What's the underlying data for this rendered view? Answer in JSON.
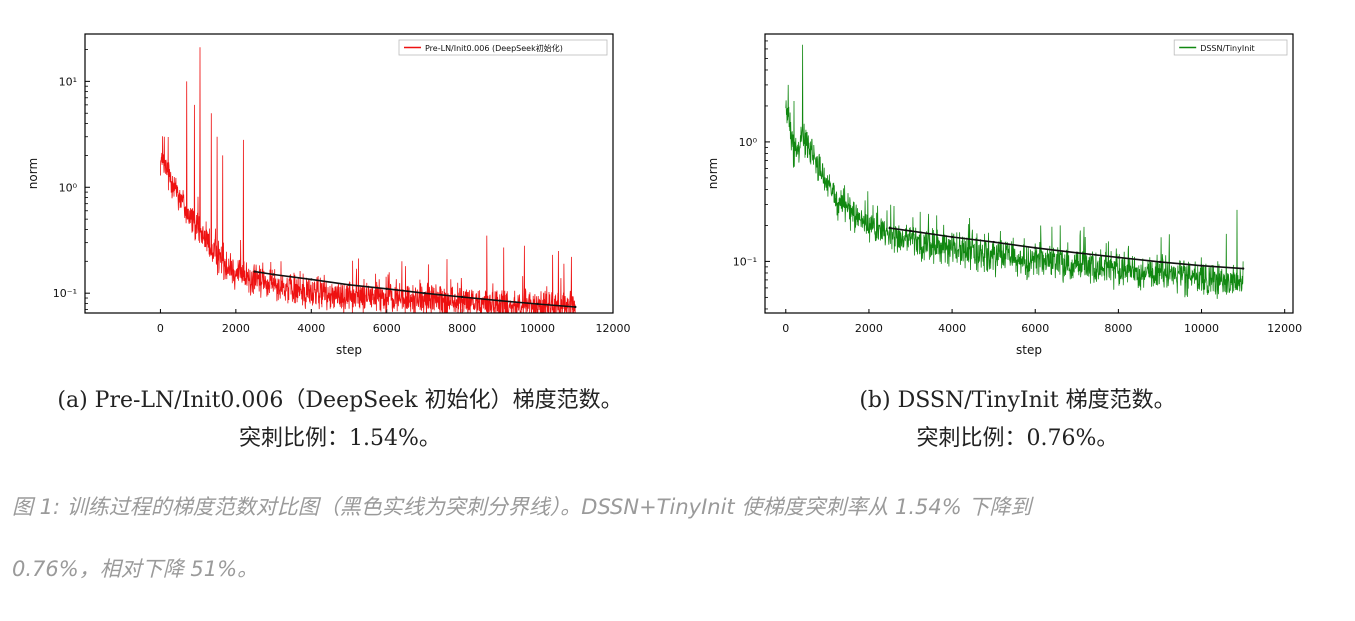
{
  "chart_data": [
    {
      "type": "line",
      "legend_position": "top-right",
      "xlabel": "step",
      "ylabel": "norm",
      "y_scale": "log",
      "xlim": [
        -2000,
        12000
      ],
      "ylim": [
        0.065,
        28
      ],
      "x_ticks": [
        0,
        2000,
        4000,
        6000,
        8000,
        10000,
        12000
      ],
      "x_tick_labels": [
        "0",
        "2000",
        "4000",
        "6000",
        "8000",
        "10000",
        "12000"
      ],
      "y_ticks": [
        10,
        1,
        0.1
      ],
      "y_tick_labels": [
        "10¹",
        "10⁰",
        "10⁻¹"
      ],
      "series": [
        {
          "name": "Pre-LN/Init0.006 (DeepSeek初始化)",
          "color": "#ee1111",
          "kind": "noisy",
          "x_range": [
            0,
            11000
          ],
          "trend": [
            [
              0,
              1.8
            ],
            [
              300,
              1.2
            ],
            [
              800,
              0.5
            ],
            [
              1500,
              0.22
            ],
            [
              2200,
              0.14
            ],
            [
              4000,
              0.1
            ],
            [
              7000,
              0.085
            ],
            [
              11000,
              0.073
            ]
          ],
          "noise": 0.18,
          "spikes": [
            [
              100,
              3.0
            ],
            [
              700,
              10.0
            ],
            [
              900,
              6.0
            ],
            [
              1050,
              21.0
            ],
            [
              1350,
              5.0
            ],
            [
              1500,
              3.0
            ],
            [
              1650,
              2.0
            ],
            [
              2200,
              2.8
            ],
            [
              3200,
              0.2
            ],
            [
              5200,
              0.17
            ],
            [
              6400,
              0.2
            ],
            [
              6500,
              0.18
            ],
            [
              7600,
              0.21
            ],
            [
              8650,
              0.35
            ],
            [
              9100,
              0.27
            ],
            [
              9650,
              0.28
            ],
            [
              10400,
              0.23
            ],
            [
              10550,
              0.25
            ],
            [
              10700,
              0.19
            ],
            [
              10900,
              0.22
            ]
          ]
        },
        {
          "name": "spike-boundary",
          "color": "#111111",
          "kind": "line",
          "x": [
            2500,
            3000,
            4000,
            5000,
            6000,
            7000,
            8000,
            9000,
            10000,
            11000
          ],
          "values": [
            0.16,
            0.15,
            0.135,
            0.12,
            0.11,
            0.1,
            0.092,
            0.085,
            0.079,
            0.074
          ]
        }
      ]
    },
    {
      "type": "line",
      "legend_position": "top-right",
      "xlabel": "step",
      "ylabel": "norm",
      "y_scale": "log",
      "xlim": [
        -500,
        12200
      ],
      "ylim": [
        0.037,
        8
      ],
      "x_ticks": [
        0,
        2000,
        4000,
        6000,
        8000,
        10000,
        12000
      ],
      "x_tick_labels": [
        "0",
        "2000",
        "4000",
        "6000",
        "8000",
        "10000",
        "12000"
      ],
      "y_ticks": [
        1,
        0.1
      ],
      "y_tick_labels": [
        "10⁰",
        "10⁻¹"
      ],
      "series": [
        {
          "name": "DSSN/TinyInit",
          "color": "#118811",
          "kind": "noisy",
          "x_range": [
            0,
            11000
          ],
          "trend": [
            [
              0,
              2.0
            ],
            [
              200,
              0.8
            ],
            [
              400,
              1.2
            ],
            [
              700,
              0.7
            ],
            [
              1200,
              0.33
            ],
            [
              2000,
              0.2
            ],
            [
              3000,
              0.145
            ],
            [
              5000,
              0.11
            ],
            [
              8000,
              0.085
            ],
            [
              11000,
              0.065
            ]
          ],
          "noise": 0.16,
          "spikes": [
            [
              60,
              3.0
            ],
            [
              200,
              2.2
            ],
            [
              400,
              6.5
            ],
            [
              6600,
              0.2
            ],
            [
              7200,
              0.16
            ],
            [
              10600,
              0.17
            ],
            [
              10850,
              0.27
            ],
            [
              11000,
              0.1
            ]
          ]
        },
        {
          "name": "spike-boundary",
          "color": "#111111",
          "kind": "line",
          "x": [
            2500,
            3000,
            4000,
            5000,
            6000,
            7000,
            8000,
            9000,
            10000,
            11000
          ],
          "values": [
            0.19,
            0.18,
            0.16,
            0.145,
            0.13,
            0.118,
            0.108,
            0.099,
            0.092,
            0.087
          ]
        }
      ]
    }
  ],
  "captions": {
    "a_line1": "(a) Pre-LN/Init0.006（DeepSeek 初始化）梯度范数。",
    "a_line2": "突刺比例：1.54%。",
    "b_line1": "(b) DSSN/TinyInit 梯度范数。",
    "b_line2": "突刺比例：0.76%。",
    "figure_line1": "图 1: 训练过程的梯度范数对比图（黑色实线为突刺分界线）。DSSN+TinyInit 使梯度突刺率从 1.54% 下降到",
    "figure_line2": "0.76%，相对下降 51%。"
  }
}
